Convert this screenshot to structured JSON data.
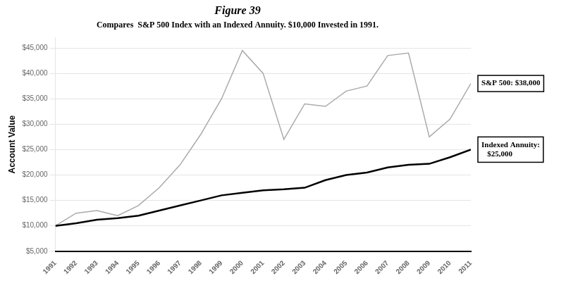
{
  "chart_data": {
    "type": "line",
    "title": "Figure 39",
    "subtitle": "Compares  S&P 500 Index with an Indexed Annuity. $10,000 Invested in 1991.",
    "y_label": "Account Value",
    "x": [
      1991,
      1992,
      1993,
      1994,
      1995,
      1996,
      1997,
      1998,
      1999,
      2000,
      2001,
      2002,
      2003,
      2004,
      2005,
      2006,
      2007,
      2008,
      2009,
      2010,
      2011
    ],
    "series": [
      {
        "color": "#aaaaaa",
        "annotation": "S&P 500: $38,000",
        "values": [
          10000,
          12500,
          13000,
          12000,
          14000,
          17500,
          22000,
          28000,
          35000,
          44500,
          40000,
          27000,
          34000,
          33500,
          36500,
          37500,
          43500,
          44000,
          27500,
          31000,
          38000
        ]
      },
      {
        "color": "#000000",
        "annotation": "Indexed Annuity:\n   $25,000",
        "values": [
          10000,
          10500,
          11200,
          11500,
          12000,
          13000,
          14000,
          15000,
          16000,
          16500,
          17000,
          17200,
          17500,
          19000,
          20000,
          20500,
          21500,
          22000,
          22200,
          23500,
          25000
        ]
      }
    ],
    "xlim": [
      1991,
      2011
    ],
    "xticks": [
      1991,
      1992,
      1993,
      1994,
      1995,
      1996,
      1997,
      1998,
      1999,
      2000,
      2001,
      2002,
      2003,
      2004,
      2005,
      2006,
      2007,
      2008,
      2009,
      2010,
      2011
    ],
    "ylim": [
      5000,
      47000
    ],
    "yticks": [
      {
        "value": 5000,
        "label": "$5,000"
      },
      {
        "value": 10000,
        "label": "$10,000"
      },
      {
        "value": 15000,
        "label": "$15,000"
      },
      {
        "value": 20000,
        "label": "$20,000"
      },
      {
        "value": 25000,
        "label": "$25,000"
      },
      {
        "value": 30000,
        "label": "$30,000"
      },
      {
        "value": 35000,
        "label": "$35,000"
      },
      {
        "value": 40000,
        "label": "$40,000"
      },
      {
        "value": 45000,
        "label": "$45,000"
      }
    ],
    "grid": true
  }
}
